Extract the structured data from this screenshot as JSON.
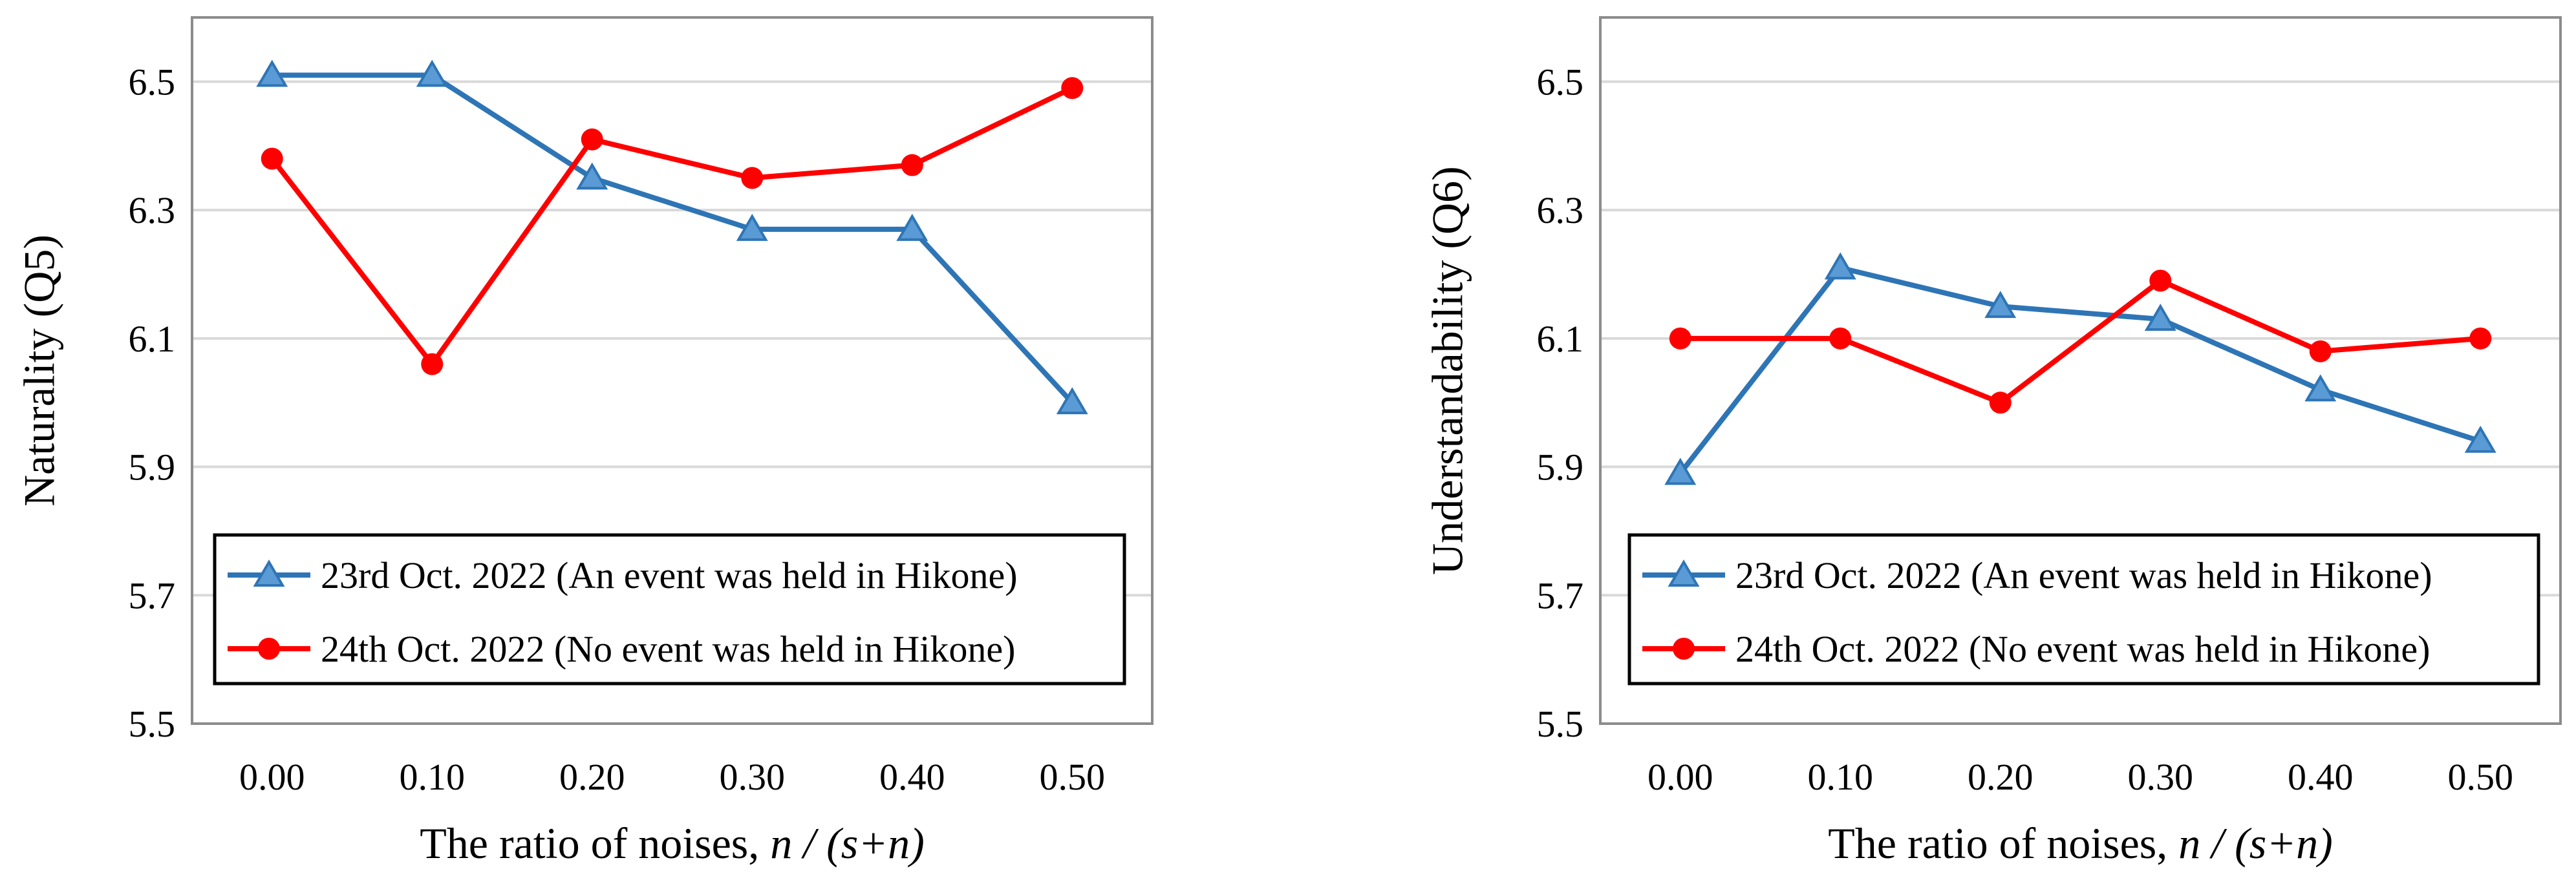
{
  "chart_data": [
    {
      "type": "line",
      "ylabel": "Naturality (Q5)",
      "xlabel_text": "The ratio of noises, ",
      "xlabel_italic": "n / (s+n)",
      "categories": [
        "0.00",
        "0.10",
        "0.20",
        "0.30",
        "0.40",
        "0.50"
      ],
      "ylim": [
        5.5,
        6.6
      ],
      "yticks": [
        "5.5",
        "5.7",
        "5.9",
        "6.1",
        "6.3",
        "6.5"
      ],
      "grid": true,
      "legend_position": "bottom",
      "series": [
        {
          "name": "23rd Oct. 2022 (An event was held in Hikone)",
          "color": "#2e75b6",
          "marker": "triangle",
          "values": [
            6.51,
            6.51,
            6.35,
            6.27,
            6.27,
            6.0
          ]
        },
        {
          "name": "24th Oct. 2022 (No event was held in Hikone)",
          "color": "#ff0000",
          "marker": "circle",
          "values": [
            6.38,
            6.06,
            6.41,
            6.35,
            6.37,
            6.49
          ]
        }
      ]
    },
    {
      "type": "line",
      "ylabel": "Understandability (Q6)",
      "xlabel_text": "The ratio of noises, ",
      "xlabel_italic": "n / (s+n)",
      "categories": [
        "0.00",
        "0.10",
        "0.20",
        "0.30",
        "0.40",
        "0.50"
      ],
      "ylim": [
        5.5,
        6.6
      ],
      "yticks": [
        "5.5",
        "5.7",
        "5.9",
        "6.1",
        "6.3",
        "6.5"
      ],
      "grid": true,
      "legend_position": "bottom",
      "series": [
        {
          "name": "23rd Oct. 2022 (An event was held in Hikone)",
          "color": "#2e75b6",
          "marker": "triangle",
          "values": [
            5.89,
            6.21,
            6.15,
            6.13,
            6.02,
            5.94
          ]
        },
        {
          "name": "24th Oct. 2022 (No event was held in Hikone)",
          "color": "#ff0000",
          "marker": "circle",
          "values": [
            6.1,
            6.1,
            6.0,
            6.19,
            6.08,
            6.1
          ]
        }
      ]
    }
  ]
}
